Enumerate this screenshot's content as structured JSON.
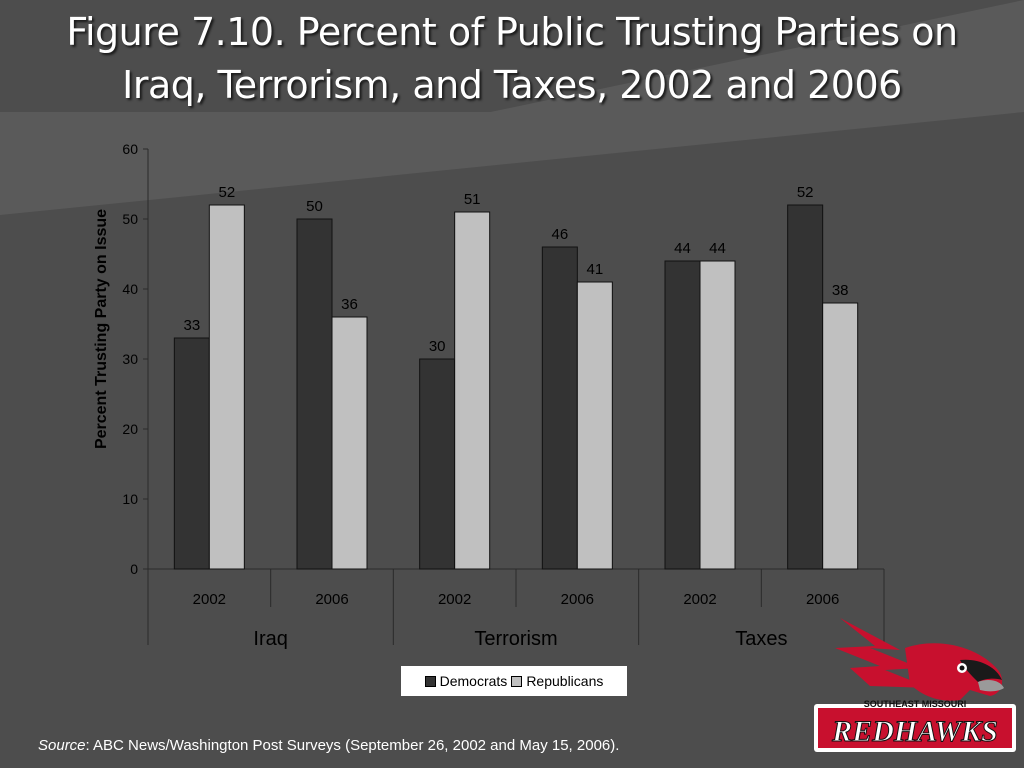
{
  "title": {
    "line1": "Figure 7.10. Percent of Public Trusting Parties on",
    "line2": "Iraq, Terrorism, and Taxes, 2002 and 2006"
  },
  "chart_data": {
    "type": "bar",
    "ylabel": "Percent Trusting Party on Issue",
    "ylim": [
      0,
      60
    ],
    "yticks": [
      0,
      10,
      20,
      30,
      40,
      50,
      60
    ],
    "groups": [
      "Iraq",
      "Terrorism",
      "Taxes"
    ],
    "categories": [
      "2002",
      "2006",
      "2002",
      "2006",
      "2002",
      "2006"
    ],
    "series": [
      {
        "name": "Democrats",
        "color": "#333333",
        "values": [
          33,
          50,
          30,
          46,
          44,
          52
        ]
      },
      {
        "name": "Republicans",
        "color": "#c0c0c0",
        "values": [
          52,
          36,
          51,
          41,
          44,
          38
        ]
      }
    ],
    "legend_position": "bottom",
    "grid": false
  },
  "source": {
    "label": "Source",
    "text": ": ABC News/Washington Post Surveys (September 26, 2002 and May 15, 2006)."
  },
  "logo": {
    "top_text": "SOUTHEAST MISSOURI",
    "main_text": "REDHAWKS"
  }
}
